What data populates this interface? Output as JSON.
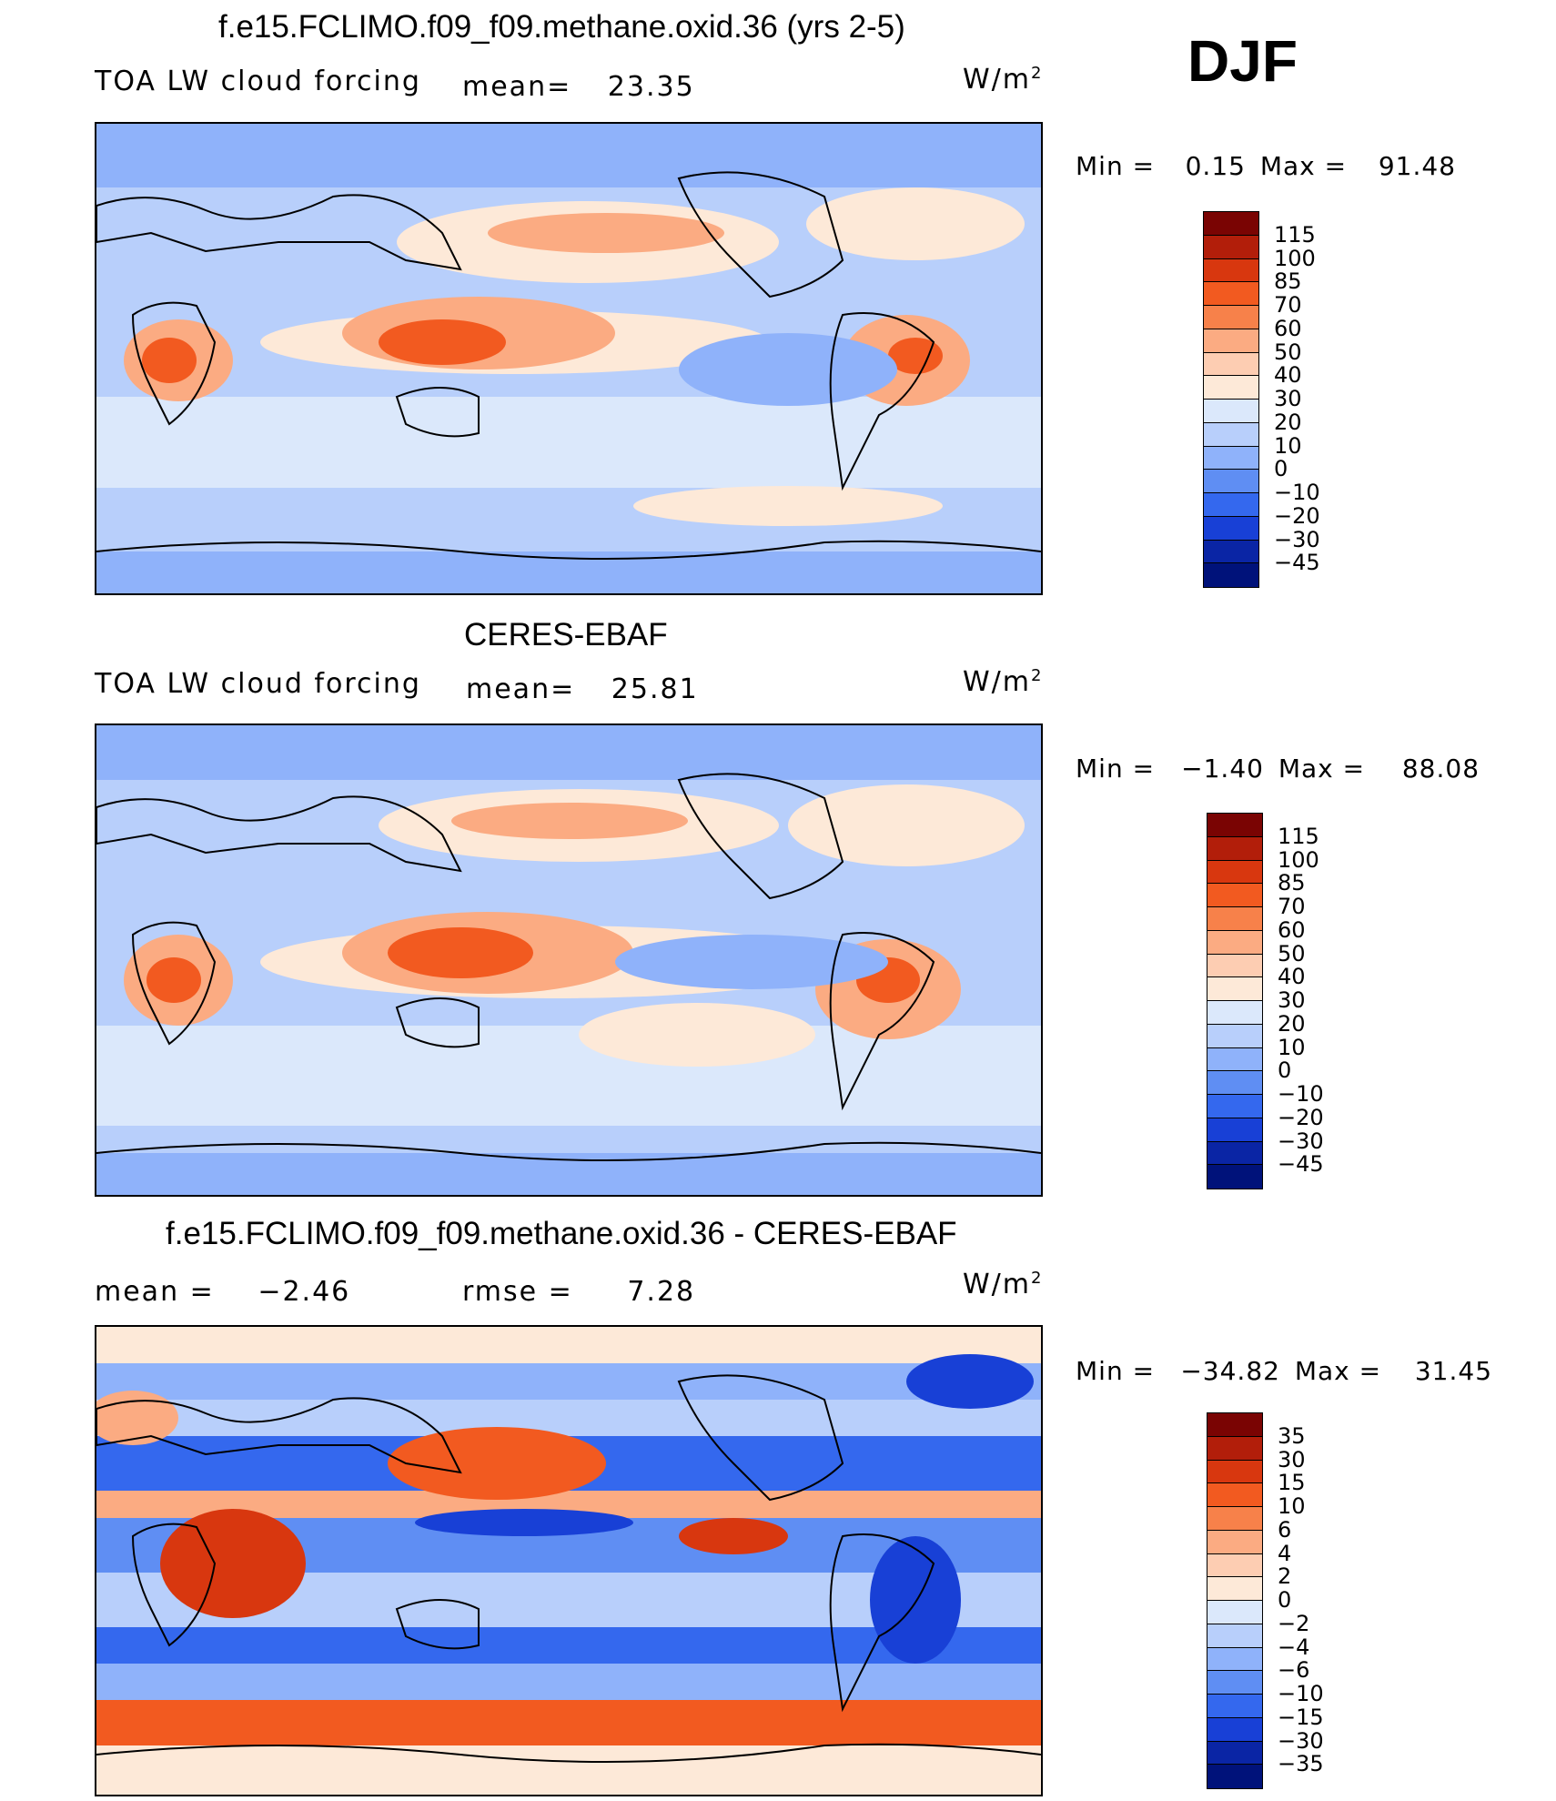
{
  "season": "DJF",
  "units_base": "W/m",
  "units_exp": "2",
  "panels": [
    {
      "title": "f.e15.FCLIMO.f09_f09.methane.oxid.36 (yrs 2-5)",
      "left_label": "TOA LW cloud forcing",
      "stat_label": "mean=",
      "stat_value": "23.35",
      "min_label": "Min =",
      "min_value": "0.15",
      "max_label": "Max =",
      "max_value": "91.48",
      "levels": [
        "115",
        "100",
        "85",
        "70",
        "60",
        "50",
        "40",
        "30",
        "20",
        "10",
        "0",
        "−10",
        "−20",
        "−30",
        "−45"
      ]
    },
    {
      "title": "CERES-EBAF",
      "left_label": "TOA LW cloud forcing",
      "stat_label": "mean=",
      "stat_value": "25.81",
      "min_label": "Min =",
      "min_value": "−1.40",
      "max_label": "Max =",
      "max_value": "88.08",
      "levels": [
        "115",
        "100",
        "85",
        "70",
        "60",
        "50",
        "40",
        "30",
        "20",
        "10",
        "0",
        "−10",
        "−20",
        "−30",
        "−45"
      ]
    },
    {
      "title": "f.e15.FCLIMO.f09_f09.methane.oxid.36 - CERES-EBAF",
      "left_label": "mean =",
      "left_value": "−2.46",
      "stat_label": "rmse =",
      "stat_value": "7.28",
      "min_label": "Min =",
      "min_value": "−34.82",
      "max_label": "Max =",
      "max_value": "31.45",
      "levels": [
        "35",
        "30",
        "15",
        "10",
        "6",
        "4",
        "2",
        "0",
        "−2",
        "−4",
        "−6",
        "−10",
        "−15",
        "−30",
        "−35"
      ]
    }
  ],
  "colorbar_colors": [
    "#7a0403",
    "#b21e0a",
    "#d8370f",
    "#f25a20",
    "#f7814a",
    "#fbab82",
    "#fdcdb2",
    "#fde9d8",
    "#dbe8fb",
    "#b8cffb",
    "#8fb2fa",
    "#5f8ef3",
    "#3468ee",
    "#1840d6",
    "#0a25a5",
    "#00127a"
  ],
  "map_palette": {
    "ocean_base": "#b8cffb",
    "cool": "#8fb2fa",
    "cooler": "#5f8ef3",
    "warm_light": "#fde9d8",
    "warm": "#fbab82",
    "warmer": "#f25a20",
    "hot": "#d8370f",
    "pale": "#dbe8fb",
    "deep_blue": "#1840d6"
  }
}
